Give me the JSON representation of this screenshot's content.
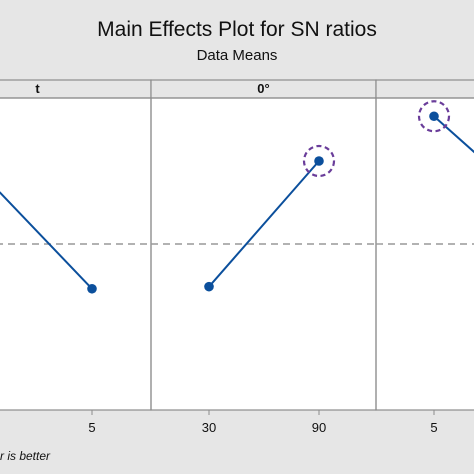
{
  "chart_data": {
    "type": "line",
    "title": "Main Effects Plot for SN ratios",
    "subtitle": "Data Means",
    "note": "r is better",
    "line_color": "#0b4f9c",
    "highlight_color": "#6a3d9a",
    "reference_line": {
      "style": "dashed",
      "color": "#999999"
    },
    "panels": [
      {
        "label": "t",
        "categories": [
          "",
          "5"
        ],
        "values": [
          0.71,
          0.17
        ],
        "highlight": []
      },
      {
        "label": "0°",
        "categories": [
          "30",
          "90"
        ],
        "values": [
          0.18,
          0.77
        ],
        "highlight": [
          1
        ]
      },
      {
        "label": "",
        "categories": [
          "5",
          ""
        ],
        "values": [
          0.98,
          0.52
        ],
        "highlight": [
          0
        ]
      }
    ]
  }
}
